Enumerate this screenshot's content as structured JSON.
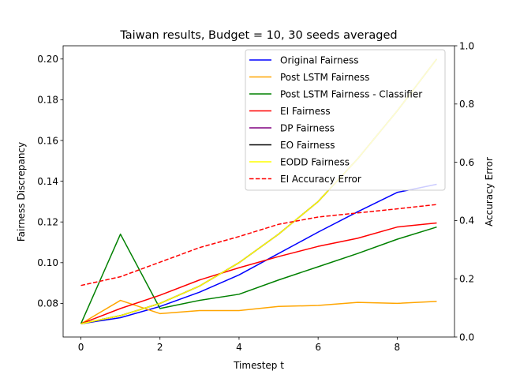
{
  "chart_data": {
    "type": "line",
    "title": "Taiwan results, Budget = 10, 30 seeds averaged",
    "xlabel": "Timestep t",
    "ylabel": "Fairness Discrepancy",
    "y2label": "Accuracy Error",
    "xlim": [
      -0.45,
      9.45
    ],
    "ylim": [
      0.0635,
      0.2065
    ],
    "y2lim": [
      0.0,
      1.0
    ],
    "xticks": [
      0,
      2,
      4,
      6,
      8
    ],
    "xtick_labels": [
      "0",
      "2",
      "4",
      "6",
      "8"
    ],
    "yticks": [
      0.08,
      0.1,
      0.12,
      0.14,
      0.16,
      0.18,
      0.2
    ],
    "ytick_labels": [
      "0.08",
      "0.10",
      "0.12",
      "0.14",
      "0.16",
      "0.18",
      "0.20"
    ],
    "y2ticks": [
      0.0,
      0.2,
      0.4,
      0.6,
      0.8,
      1.0
    ],
    "y2tick_labels": [
      "0.0",
      "0.2",
      "0.4",
      "0.6",
      "0.8",
      "1.0"
    ],
    "legend_position": "top-right",
    "grid": false,
    "x": [
      0,
      1,
      2,
      3,
      4,
      5,
      6,
      7,
      8,
      9
    ],
    "series": [
      {
        "name": "Original Fairness",
        "color": "#0000ff",
        "style": "solid",
        "axis": "left",
        "values": [
          0.07,
          0.073,
          0.0785,
          0.0855,
          0.094,
          0.1045,
          0.115,
          0.125,
          0.1345,
          0.1385
        ]
      },
      {
        "name": "Post LSTM Fairness",
        "color": "#ffa500",
        "style": "solid",
        "axis": "left",
        "values": [
          0.07,
          0.0815,
          0.075,
          0.0765,
          0.0765,
          0.0785,
          0.079,
          0.0805,
          0.08,
          0.081
        ]
      },
      {
        "name": "Post LSTM Fairness - Classifier",
        "color": "#008000",
        "style": "solid",
        "axis": "left",
        "values": [
          0.07,
          0.114,
          0.0775,
          0.0815,
          0.0845,
          0.0915,
          0.098,
          0.1045,
          0.1115,
          0.1175
        ]
      },
      {
        "name": "EI Fairness",
        "color": "#ff0000",
        "style": "solid",
        "axis": "left",
        "values": [
          0.07,
          0.0775,
          0.084,
          0.0915,
          0.0975,
          0.103,
          0.108,
          0.112,
          0.1175,
          0.1195
        ]
      },
      {
        "name": "DP Fairness",
        "color": "#800080",
        "style": "solid",
        "axis": "left",
        "values": [
          0.07,
          0.074,
          0.08,
          0.0885,
          0.1,
          0.114,
          0.13,
          0.151,
          0.1745,
          0.2
        ]
      },
      {
        "name": "EO Fairness",
        "color": "#000000",
        "style": "solid",
        "axis": "left",
        "values": [
          0.07,
          0.074,
          0.08,
          0.0885,
          0.1,
          0.114,
          0.13,
          0.151,
          0.1745,
          0.2
        ]
      },
      {
        "name": "EODD Fairness",
        "color": "#ffff00",
        "style": "solid",
        "axis": "left",
        "values": [
          0.07,
          0.074,
          0.08,
          0.0885,
          0.1,
          0.114,
          0.13,
          0.151,
          0.1745,
          0.2
        ]
      },
      {
        "name": "EI Accuracy Error",
        "color": "#ff0000",
        "style": "dashed",
        "axis": "right",
        "values": [
          0.177,
          0.207,
          0.257,
          0.307,
          0.345,
          0.387,
          0.412,
          0.426,
          0.44,
          0.455
        ]
      }
    ]
  }
}
